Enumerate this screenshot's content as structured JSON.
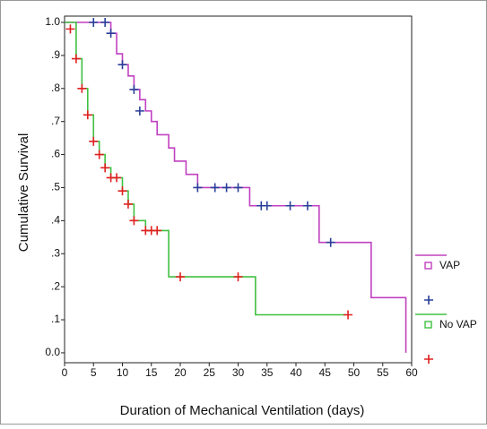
{
  "chart_data": {
    "type": "step",
    "x_label": "Duration of Mechanical Ventilation (days)",
    "y_label": "Cumulative Survival",
    "xlim": [
      0,
      60
    ],
    "xticks": [
      0,
      5,
      10,
      15,
      20,
      25,
      30,
      35,
      40,
      45,
      50,
      55,
      60
    ],
    "ylim": [
      -0.03,
      1.0
    ],
    "yticks": [
      {
        "value": 0,
        "label": "0.0"
      },
      {
        "value": 0.1,
        "label": ".1"
      },
      {
        "value": 0.2,
        "label": ".2"
      },
      {
        "value": 0.3,
        "label": ".3"
      },
      {
        "value": 0.4,
        "label": ".4"
      },
      {
        "value": 0.5,
        "label": ".5"
      },
      {
        "value": 0.6,
        "label": ".6"
      },
      {
        "value": 0.7,
        "label": ".7"
      },
      {
        "value": 0.8,
        "label": ".8"
      },
      {
        "value": 0.9,
        "label": ".9"
      },
      {
        "value": 1.0,
        "label": "1.0"
      }
    ],
    "series": [
      {
        "name": "VAP",
        "color": "#c040c0",
        "kind": "line",
        "x": [
          0,
          8,
          9,
          10,
          11,
          12,
          13,
          14,
          15,
          16,
          18,
          19,
          21,
          23,
          32,
          44,
          53,
          59
        ],
        "values": [
          1.0,
          0.967,
          0.905,
          0.872,
          0.838,
          0.797,
          0.766,
          0.732,
          0.7,
          0.66,
          0.62,
          0.58,
          0.54,
          0.5,
          0.445,
          0.334,
          0.167,
          0
        ]
      },
      {
        "name": null,
        "color": "#2a3f9a",
        "kind": "censor",
        "x": [
          5,
          7,
          8,
          10,
          12,
          13,
          23,
          26,
          28,
          30,
          34,
          35,
          39,
          42,
          46
        ],
        "values": [
          1.0,
          1.0,
          0.967,
          0.872,
          0.797,
          0.732,
          0.5,
          0.5,
          0.5,
          0.5,
          0.445,
          0.445,
          0.445,
          0.445,
          0.334
        ]
      },
      {
        "name": "No VAP",
        "color": "#40c040",
        "kind": "line",
        "x": [
          0,
          2,
          3,
          4,
          5,
          6,
          7,
          8,
          10,
          11,
          12,
          14,
          18,
          33,
          49
        ],
        "values": [
          1.0,
          0.89,
          0.8,
          0.72,
          0.64,
          0.6,
          0.56,
          0.53,
          0.49,
          0.45,
          0.4,
          0.37,
          0.23,
          0.115,
          0.115
        ]
      },
      {
        "name": null,
        "color": "#e02020",
        "kind": "censor",
        "x": [
          1,
          2,
          3,
          4,
          5,
          6,
          7,
          8,
          9,
          10,
          11,
          12,
          14,
          15,
          16,
          20,
          30,
          49
        ],
        "values": [
          0.98,
          0.89,
          0.8,
          0.72,
          0.64,
          0.6,
          0.56,
          0.53,
          0.53,
          0.49,
          0.45,
          0.4,
          0.37,
          0.37,
          0.37,
          0.23,
          0.23,
          0.115
        ]
      }
    ]
  }
}
